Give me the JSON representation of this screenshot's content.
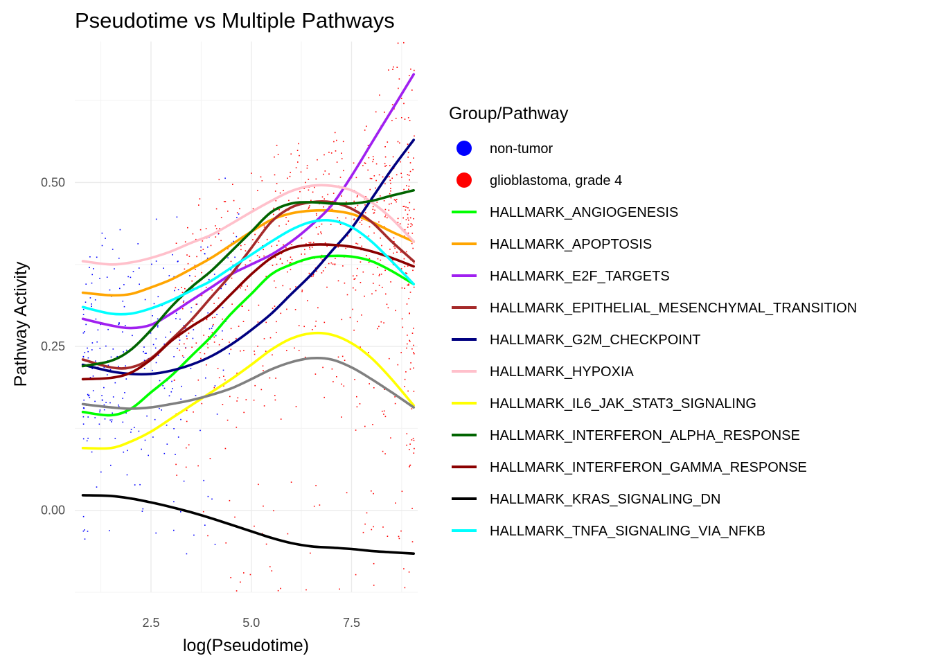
{
  "chart_data": {
    "type": "scatter",
    "title": "Pseudotime vs Multiple Pathways",
    "xlabel": "log(Pseudotime)",
    "ylabel": "Pathway Activity",
    "xlim": [
      0.6,
      9.15
    ],
    "ylim": [
      -0.125,
      0.715
    ],
    "x_ticks": [
      2.5,
      5.0,
      7.5
    ],
    "x_tick_labels": [
      "2.5",
      "5.0",
      "7.5"
    ],
    "y_ticks": [
      0.0,
      0.25,
      0.5
    ],
    "y_tick_labels": [
      "0.00",
      "0.25",
      "0.50"
    ],
    "grid": true,
    "legend": {
      "title": "Group/Pathway",
      "placement": "right",
      "points": [
        {
          "name": "non-tumor",
          "color": "#0000ff"
        },
        {
          "name": "glioblastoma, grade 4",
          "color": "#ff0000"
        }
      ]
    },
    "x": [
      0.8,
      1.5,
      2.0,
      2.5,
      3.0,
      3.5,
      4.0,
      4.5,
      5.0,
      5.5,
      6.0,
      6.5,
      7.0,
      7.5,
      8.0,
      8.5,
      9.05
    ],
    "series": [
      {
        "name": "HALLMARK_ANGIOGENESIS",
        "color": "#00ff00",
        "values": [
          0.15,
          0.145,
          0.155,
          0.18,
          0.205,
          0.235,
          0.265,
          0.3,
          0.33,
          0.36,
          0.375,
          0.385,
          0.388,
          0.387,
          0.38,
          0.365,
          0.345
        ]
      },
      {
        "name": "HALLMARK_APOPTOSIS",
        "color": "#ffa500",
        "values": [
          0.332,
          0.328,
          0.33,
          0.34,
          0.352,
          0.368,
          0.385,
          0.405,
          0.425,
          0.443,
          0.453,
          0.457,
          0.457,
          0.452,
          0.44,
          0.425,
          0.41
        ]
      },
      {
        "name": "HALLMARK_E2F_TARGETS",
        "color": "#a020f0",
        "values": [
          0.292,
          0.282,
          0.278,
          0.283,
          0.3,
          0.32,
          0.34,
          0.36,
          0.375,
          0.39,
          0.41,
          0.435,
          0.465,
          0.51,
          0.56,
          0.61,
          0.665
        ]
      },
      {
        "name": "HALLMARK_EPITHELIAL_MESENCHYMAL_TRANSITION",
        "color": "#a52a2a",
        "values": [
          0.23,
          0.218,
          0.218,
          0.232,
          0.26,
          0.29,
          0.325,
          0.36,
          0.4,
          0.44,
          0.462,
          0.47,
          0.47,
          0.46,
          0.44,
          0.41,
          0.38
        ]
      },
      {
        "name": "HALLMARK_G2M_CHECKPOINT",
        "color": "#000080",
        "values": [
          0.222,
          0.212,
          0.208,
          0.208,
          0.213,
          0.222,
          0.235,
          0.253,
          0.275,
          0.3,
          0.33,
          0.36,
          0.395,
          0.43,
          0.475,
          0.52,
          0.565
        ]
      },
      {
        "name": "HALLMARK_HYPOXIA",
        "color": "#ffc0cb",
        "values": [
          0.38,
          0.375,
          0.378,
          0.385,
          0.395,
          0.408,
          0.42,
          0.437,
          0.455,
          0.472,
          0.487,
          0.495,
          0.495,
          0.488,
          0.47,
          0.445,
          0.41
        ]
      },
      {
        "name": "HALLMARK_IL6_JAK_STAT3_SIGNALING",
        "color": "#ffff00",
        "values": [
          0.095,
          0.095,
          0.105,
          0.12,
          0.14,
          0.16,
          0.18,
          0.2,
          0.222,
          0.245,
          0.262,
          0.27,
          0.268,
          0.255,
          0.232,
          0.2,
          0.16
        ]
      },
      {
        "name": "HALLMARK_INTERFERON_ALPHA_RESPONSE",
        "color": "#006400",
        "values": [
          0.22,
          0.228,
          0.245,
          0.275,
          0.31,
          0.34,
          0.365,
          0.395,
          0.425,
          0.455,
          0.468,
          0.47,
          0.468,
          0.468,
          0.472,
          0.48,
          0.488
        ]
      },
      {
        "name": "HALLMARK_INTERFERON_GAMMA_RESPONSE",
        "color": "#8b0000",
        "values": [
          0.2,
          0.202,
          0.21,
          0.23,
          0.258,
          0.28,
          0.3,
          0.33,
          0.36,
          0.385,
          0.4,
          0.405,
          0.405,
          0.402,
          0.395,
          0.385,
          0.372
        ]
      },
      {
        "name": "HALLMARK_KRAS_SIGNALING_DN",
        "color": "#000000",
        "values": [
          0.023,
          0.022,
          0.018,
          0.012,
          0.005,
          -0.003,
          -0.012,
          -0.022,
          -0.032,
          -0.042,
          -0.05,
          -0.055,
          -0.057,
          -0.059,
          -0.062,
          -0.064,
          -0.066
        ]
      },
      {
        "name": "HALLMARK_TNFA_SIGNALING_VIA_NFKB",
        "color": "#00ffff",
        "values": [
          0.31,
          0.3,
          0.3,
          0.308,
          0.32,
          0.335,
          0.35,
          0.37,
          0.39,
          0.41,
          0.428,
          0.44,
          0.442,
          0.432,
          0.41,
          0.38,
          0.345
        ]
      },
      {
        "name": "",
        "color": "#808080",
        "values": [
          0.162,
          0.157,
          0.155,
          0.157,
          0.162,
          0.168,
          0.176,
          0.186,
          0.2,
          0.215,
          0.226,
          0.232,
          0.23,
          0.218,
          0.2,
          0.18,
          0.157
        ]
      }
    ]
  }
}
